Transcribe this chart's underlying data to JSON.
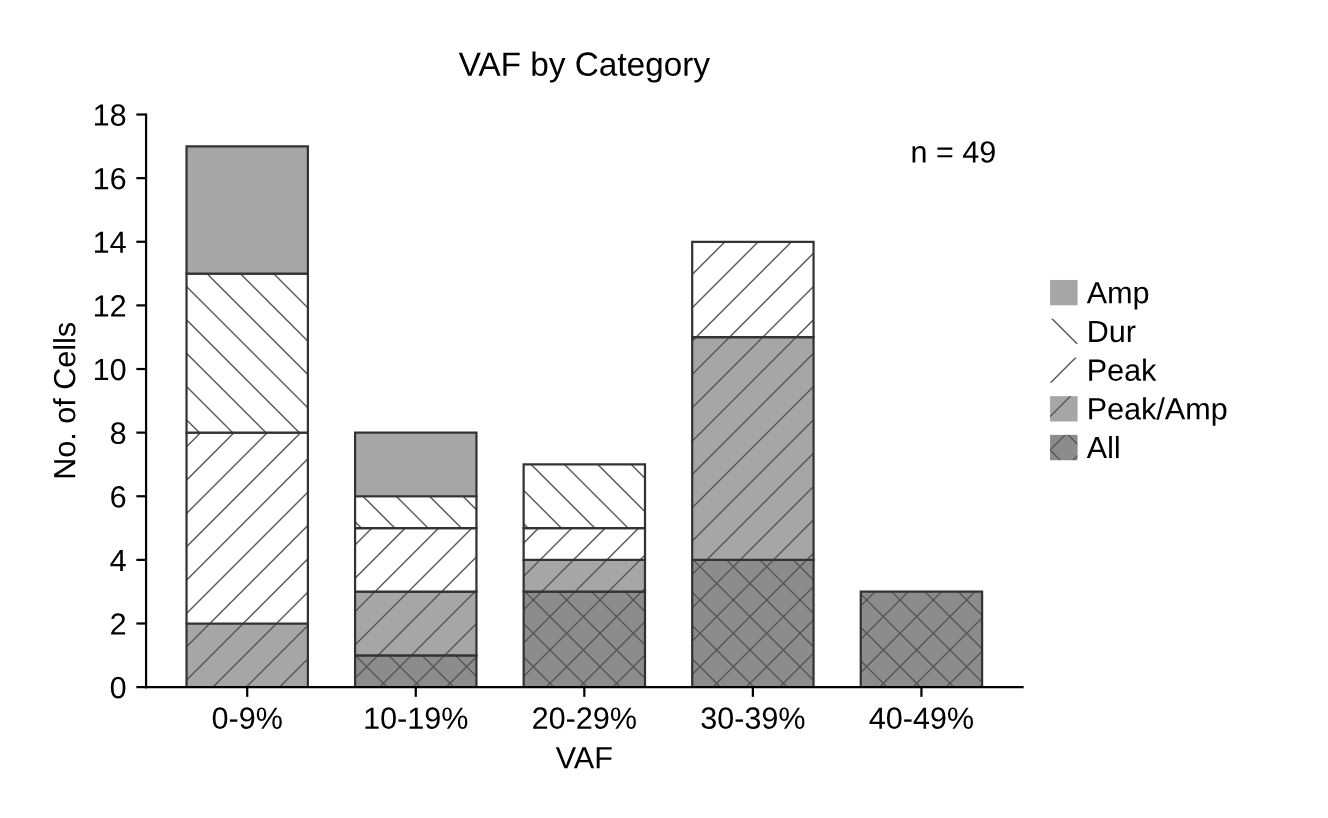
{
  "chart_data": {
    "type": "bar",
    "title": "VAF by Category",
    "xlabel": "VAF",
    "ylabel": "No. of Cells",
    "categories": [
      "0-9%",
      "10-19%",
      "20-29%",
      "30-39%",
      "40-49%"
    ],
    "stacked": true,
    "series": [
      {
        "name": "All",
        "color": "#8c8c8c",
        "values": [
          0,
          1,
          3,
          4,
          3
        ]
      },
      {
        "name": "Peak/Amp",
        "color": "#a6a6a6",
        "values": [
          2,
          2,
          1,
          7,
          0
        ]
      },
      {
        "name": "Peak",
        "color": "#ffffff",
        "values": [
          6,
          2,
          1,
          3,
          0
        ]
      },
      {
        "name": "Dur",
        "color": "#ffffff",
        "values": [
          5,
          1,
          2,
          0,
          0
        ]
      },
      {
        "name": "Amp",
        "color": "#a6a6a6",
        "values": [
          4,
          2,
          0,
          0,
          0
        ]
      }
    ],
    "ylim": [
      0,
      18
    ],
    "yticks": [
      0,
      2,
      4,
      6,
      8,
      10,
      12,
      14,
      16,
      18
    ],
    "grid": false,
    "legend": "right",
    "annotations": [
      "n = 49"
    ]
  }
}
